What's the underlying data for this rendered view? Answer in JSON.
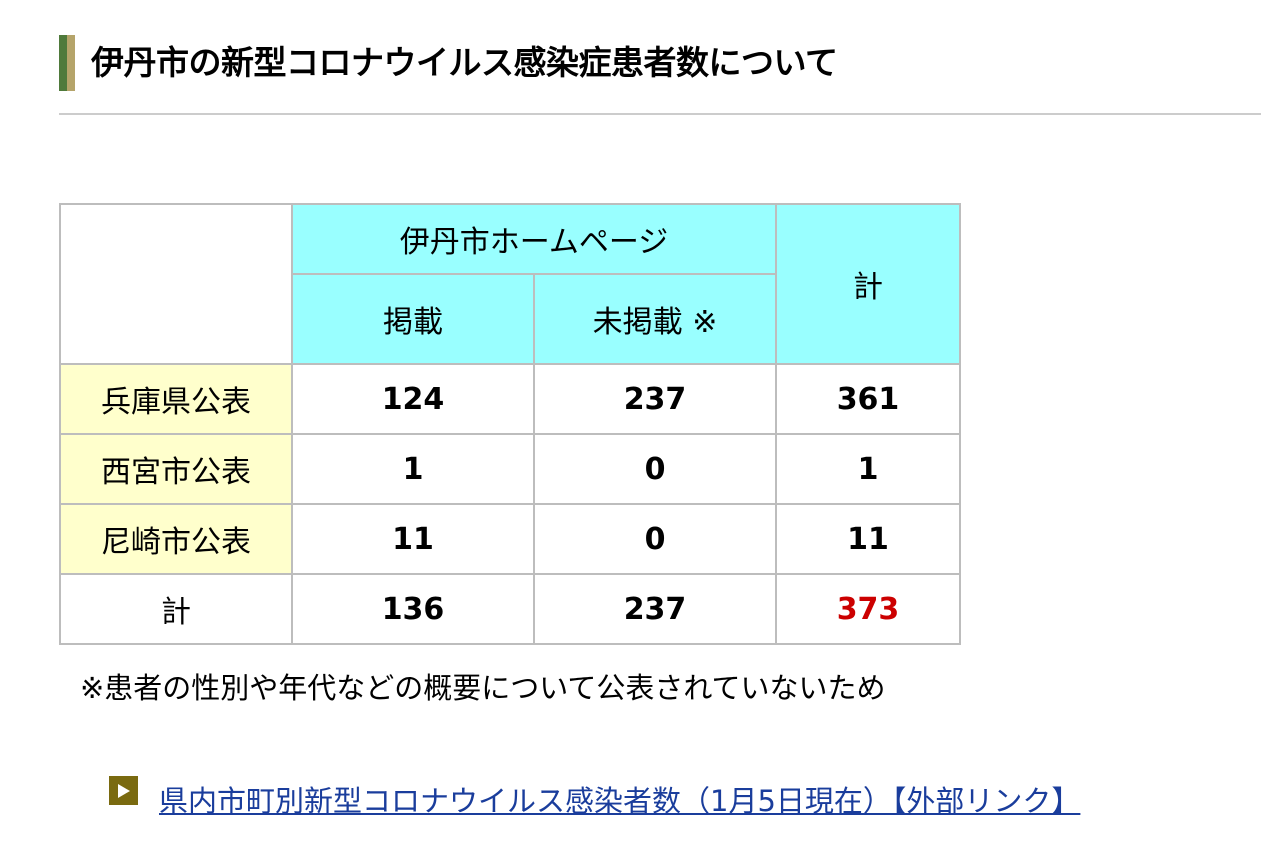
{
  "heading": {
    "title": "伊丹市の新型コロナウイルス感染症患者数について",
    "bar_colors": [
      "#4f7a3b",
      "#b5a46a"
    ]
  },
  "table": {
    "group_header": "伊丹市ホームページ",
    "col_published": "掲載",
    "col_unpublished": "未掲載 ※",
    "col_total": "計",
    "rows": [
      {
        "label": "兵庫県公表",
        "published": "124",
        "unpublished": "237",
        "total": "361"
      },
      {
        "label": "西宮市公表",
        "published": "1",
        "unpublished": "0",
        "total": "1"
      },
      {
        "label": "尼崎市公表",
        "published": "11",
        "unpublished": "0",
        "total": "11"
      }
    ],
    "total_row": {
      "label": "計",
      "published": "136",
      "unpublished": "237",
      "total": "373"
    },
    "colors": {
      "header_bg": "#99ffff",
      "row_header_bg": "#ffffcc",
      "grand_total": "#cc0000"
    }
  },
  "note": "※患者の性別や年代などの概要について公表されていないため",
  "link": {
    "icon": "play-icon",
    "text": "県内市町別新型コロナウイルス感染者数（1月5日現在）【外部リンク】",
    "color": "#1a3d9c"
  }
}
